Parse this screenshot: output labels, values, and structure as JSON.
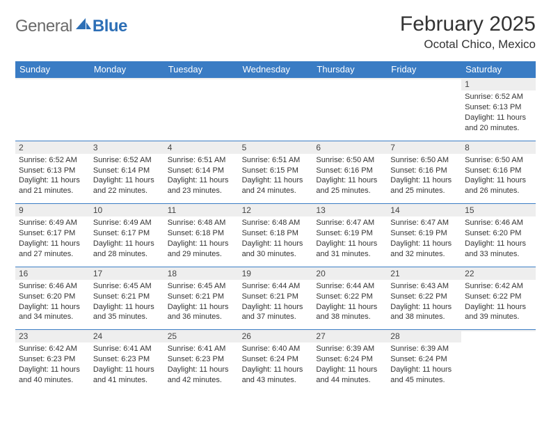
{
  "logo": {
    "part1": "General",
    "part2": "Blue"
  },
  "title": "February 2025",
  "location": "Ocotal Chico, Mexico",
  "weekdays": [
    "Sunday",
    "Monday",
    "Tuesday",
    "Wednesday",
    "Thursday",
    "Friday",
    "Saturday"
  ],
  "header_bg": "#3a7cc4",
  "header_fg": "#ffffff",
  "daynum_bg": "#eeeeee",
  "row_border": "#3a7cc4",
  "weeks": [
    [
      {
        "n": "",
        "lines": []
      },
      {
        "n": "",
        "lines": []
      },
      {
        "n": "",
        "lines": []
      },
      {
        "n": "",
        "lines": []
      },
      {
        "n": "",
        "lines": []
      },
      {
        "n": "",
        "lines": []
      },
      {
        "n": "1",
        "lines": [
          "Sunrise: 6:52 AM",
          "Sunset: 6:13 PM",
          "Daylight: 11 hours and 20 minutes."
        ]
      }
    ],
    [
      {
        "n": "2",
        "lines": [
          "Sunrise: 6:52 AM",
          "Sunset: 6:13 PM",
          "Daylight: 11 hours and 21 minutes."
        ]
      },
      {
        "n": "3",
        "lines": [
          "Sunrise: 6:52 AM",
          "Sunset: 6:14 PM",
          "Daylight: 11 hours and 22 minutes."
        ]
      },
      {
        "n": "4",
        "lines": [
          "Sunrise: 6:51 AM",
          "Sunset: 6:14 PM",
          "Daylight: 11 hours and 23 minutes."
        ]
      },
      {
        "n": "5",
        "lines": [
          "Sunrise: 6:51 AM",
          "Sunset: 6:15 PM",
          "Daylight: 11 hours and 24 minutes."
        ]
      },
      {
        "n": "6",
        "lines": [
          "Sunrise: 6:50 AM",
          "Sunset: 6:16 PM",
          "Daylight: 11 hours and 25 minutes."
        ]
      },
      {
        "n": "7",
        "lines": [
          "Sunrise: 6:50 AM",
          "Sunset: 6:16 PM",
          "Daylight: 11 hours and 25 minutes."
        ]
      },
      {
        "n": "8",
        "lines": [
          "Sunrise: 6:50 AM",
          "Sunset: 6:16 PM",
          "Daylight: 11 hours and 26 minutes."
        ]
      }
    ],
    [
      {
        "n": "9",
        "lines": [
          "Sunrise: 6:49 AM",
          "Sunset: 6:17 PM",
          "Daylight: 11 hours and 27 minutes."
        ]
      },
      {
        "n": "10",
        "lines": [
          "Sunrise: 6:49 AM",
          "Sunset: 6:17 PM",
          "Daylight: 11 hours and 28 minutes."
        ]
      },
      {
        "n": "11",
        "lines": [
          "Sunrise: 6:48 AM",
          "Sunset: 6:18 PM",
          "Daylight: 11 hours and 29 minutes."
        ]
      },
      {
        "n": "12",
        "lines": [
          "Sunrise: 6:48 AM",
          "Sunset: 6:18 PM",
          "Daylight: 11 hours and 30 minutes."
        ]
      },
      {
        "n": "13",
        "lines": [
          "Sunrise: 6:47 AM",
          "Sunset: 6:19 PM",
          "Daylight: 11 hours and 31 minutes."
        ]
      },
      {
        "n": "14",
        "lines": [
          "Sunrise: 6:47 AM",
          "Sunset: 6:19 PM",
          "Daylight: 11 hours and 32 minutes."
        ]
      },
      {
        "n": "15",
        "lines": [
          "Sunrise: 6:46 AM",
          "Sunset: 6:20 PM",
          "Daylight: 11 hours and 33 minutes."
        ]
      }
    ],
    [
      {
        "n": "16",
        "lines": [
          "Sunrise: 6:46 AM",
          "Sunset: 6:20 PM",
          "Daylight: 11 hours and 34 minutes."
        ]
      },
      {
        "n": "17",
        "lines": [
          "Sunrise: 6:45 AM",
          "Sunset: 6:21 PM",
          "Daylight: 11 hours and 35 minutes."
        ]
      },
      {
        "n": "18",
        "lines": [
          "Sunrise: 6:45 AM",
          "Sunset: 6:21 PM",
          "Daylight: 11 hours and 36 minutes."
        ]
      },
      {
        "n": "19",
        "lines": [
          "Sunrise: 6:44 AM",
          "Sunset: 6:21 PM",
          "Daylight: 11 hours and 37 minutes."
        ]
      },
      {
        "n": "20",
        "lines": [
          "Sunrise: 6:44 AM",
          "Sunset: 6:22 PM",
          "Daylight: 11 hours and 38 minutes."
        ]
      },
      {
        "n": "21",
        "lines": [
          "Sunrise: 6:43 AM",
          "Sunset: 6:22 PM",
          "Daylight: 11 hours and 38 minutes."
        ]
      },
      {
        "n": "22",
        "lines": [
          "Sunrise: 6:42 AM",
          "Sunset: 6:22 PM",
          "Daylight: 11 hours and 39 minutes."
        ]
      }
    ],
    [
      {
        "n": "23",
        "lines": [
          "Sunrise: 6:42 AM",
          "Sunset: 6:23 PM",
          "Daylight: 11 hours and 40 minutes."
        ]
      },
      {
        "n": "24",
        "lines": [
          "Sunrise: 6:41 AM",
          "Sunset: 6:23 PM",
          "Daylight: 11 hours and 41 minutes."
        ]
      },
      {
        "n": "25",
        "lines": [
          "Sunrise: 6:41 AM",
          "Sunset: 6:23 PM",
          "Daylight: 11 hours and 42 minutes."
        ]
      },
      {
        "n": "26",
        "lines": [
          "Sunrise: 6:40 AM",
          "Sunset: 6:24 PM",
          "Daylight: 11 hours and 43 minutes."
        ]
      },
      {
        "n": "27",
        "lines": [
          "Sunrise: 6:39 AM",
          "Sunset: 6:24 PM",
          "Daylight: 11 hours and 44 minutes."
        ]
      },
      {
        "n": "28",
        "lines": [
          "Sunrise: 6:39 AM",
          "Sunset: 6:24 PM",
          "Daylight: 11 hours and 45 minutes."
        ]
      },
      {
        "n": "",
        "lines": []
      }
    ]
  ]
}
